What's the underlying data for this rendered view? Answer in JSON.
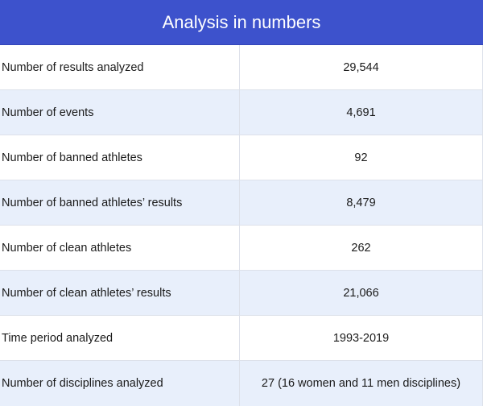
{
  "table": {
    "title": "Analysis in numbers",
    "rows": [
      {
        "label": "Number of results analyzed",
        "value": "29,544"
      },
      {
        "label": "Number of events",
        "value": "4,691"
      },
      {
        "label": "Number of banned athletes",
        "value": "92"
      },
      {
        "label": "Number of banned athletes’ results",
        "value": "8,479"
      },
      {
        "label": "Number of clean athletes",
        "value": "262"
      },
      {
        "label": "Number of clean athletes’ results",
        "value": "21,066"
      },
      {
        "label": "Time period analyzed",
        "value": "1993-2019"
      },
      {
        "label": "Number of disciplines analyzed",
        "value": "27 (16 women and 11 men disciplines)"
      }
    ]
  },
  "colors": {
    "header_bg": "#3d52cc",
    "alt_row_bg": "#e8effb"
  }
}
